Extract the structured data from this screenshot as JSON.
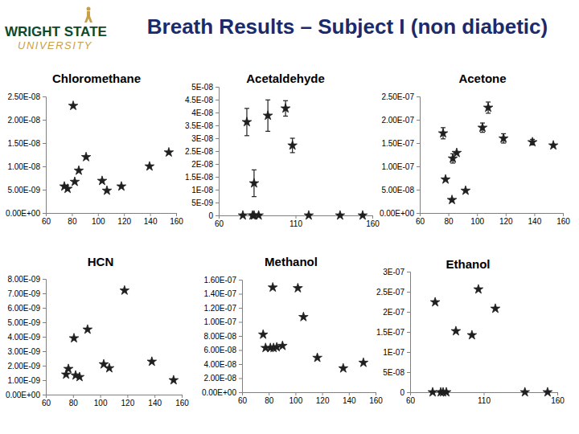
{
  "header": {
    "title": "Breath Results – Subject I (non diabetic)",
    "logo_top": "WRIGHT STATE",
    "logo_bottom": "UNIVERSITY"
  },
  "chart_data": [
    {
      "type": "scatter",
      "title": "Chloromethane",
      "marker": "star",
      "color": "#1f1f1f",
      "x": [
        74.2,
        76.7,
        81.0,
        82.2,
        85.3,
        90.9,
        103.2,
        106.9,
        118.0,
        139.6,
        154.4
      ],
      "values": [
        5.7e-09,
        5.2e-09,
        2.3e-08,
        6.7e-09,
        9.1e-09,
        1.2e-08,
        6.9e-09,
        4.8e-09,
        5.7e-09,
        1e-08,
        1.3e-08
      ],
      "xlim": [
        60,
        160
      ],
      "xticks": [
        60,
        80,
        100,
        120,
        140,
        160
      ],
      "ylim": [
        0,
        2.5e-08
      ],
      "yticks": [
        {
          "value": 0,
          "label": "0.00E+00"
        },
        {
          "value": 5e-09,
          "label": "5.00E-09"
        },
        {
          "value": 1e-08,
          "label": "1.00E-08"
        },
        {
          "value": 1.5e-08,
          "label": "1.50E-08"
        },
        {
          "value": 2e-08,
          "label": "2.00E-08"
        },
        {
          "value": 2.5e-08,
          "label": "2.50E-08"
        }
      ]
    },
    {
      "type": "scatter",
      "title": "Acetaldehyde",
      "marker": "star",
      "color": "#1f1f1f",
      "x": [
        75.7,
        78.3,
        82.0,
        83.0,
        86.0,
        83.0,
        92.0,
        103.5,
        108.0,
        118.6,
        139.0,
        153.7
      ],
      "values": [
        0,
        3.63e-08,
        0,
        0,
        0,
        1.25e-08,
        3.88e-08,
        4.16e-08,
        2.72e-08,
        0,
        0,
        0
      ],
      "errors": [
        null,
        5.3e-09,
        null,
        null,
        null,
        5.2e-09,
        6.1e-09,
        3e-09,
        2.8e-09,
        null,
        null,
        null
      ],
      "xlim": [
        60,
        160
      ],
      "xticks": [
        60,
        110,
        160
      ],
      "ylim": [
        0,
        5e-08
      ],
      "yticks": [
        0,
        {
          "value": 5e-09,
          "label": "5E-09"
        },
        {
          "value": 1e-08,
          "label": "1E-08"
        },
        {
          "value": 1.5e-08,
          "label": "1.5E-08"
        },
        {
          "value": 2e-08,
          "label": "2E-08"
        },
        {
          "value": 2.5e-08,
          "label": "2.5E-08"
        },
        {
          "value": 3e-08,
          "label": "3E-08"
        },
        {
          "value": 3.5e-08,
          "label": "3.5E-08"
        },
        {
          "value": 4e-08,
          "label": "4E-08"
        },
        {
          "value": 4.5e-08,
          "label": "4.5E-08"
        },
        {
          "value": 5e-08,
          "label": "5E-08"
        }
      ]
    },
    {
      "type": "scatter",
      "title": "Acetone",
      "marker": "star",
      "color": "#1f1f1f",
      "x": [
        76.3,
        78.0,
        82.5,
        83.1,
        85.8,
        92.0,
        103.8,
        107.8,
        118.5,
        138.7,
        153.3
      ],
      "values": [
        1.71e-07,
        7.2e-08,
        2.8e-08,
        1.17e-07,
        1.29e-07,
        4.8e-08,
        1.83e-07,
        2.26e-07,
        1.6e-07,
        1.52e-07,
        1.45e-07
      ],
      "errors": [
        1.2e-08,
        null,
        null,
        1e-08,
        null,
        null,
        1e-08,
        1.2e-08,
        1e-08,
        6e-09,
        null
      ],
      "xlim": [
        60,
        160
      ],
      "xticks": [
        60,
        80,
        100,
        120,
        140,
        160
      ],
      "ylim": [
        0,
        2.5e-07
      ],
      "yticks": [
        {
          "value": 0,
          "label": "0.00E+00"
        },
        {
          "value": 5e-08,
          "label": "5.00E-08"
        },
        {
          "value": 1e-07,
          "label": "1.00E-07"
        },
        {
          "value": 1.5e-07,
          "label": "1.50E-07"
        },
        {
          "value": 2e-07,
          "label": "2.00E-07"
        },
        {
          "value": 2.5e-07,
          "label": "2.50E-07"
        }
      ]
    },
    {
      "type": "scatter",
      "title": "HCN",
      "marker": "star",
      "color": "#1f1f1f",
      "x": [
        74.9,
        76.6,
        80.7,
        81.9,
        84.8,
        90.7,
        102.6,
        106.7,
        117.9,
        138.0,
        154.0
      ],
      "values": [
        1.39e-09,
        1.78e-09,
        3.9e-09,
        1.33e-09,
        1.22e-09,
        4.5e-09,
        2.1e-09,
        1.83e-09,
        7.2e-09,
        2.28e-09,
        1e-09
      ],
      "xlim": [
        60,
        160
      ],
      "xticks": [
        60,
        80,
        100,
        120,
        140,
        160
      ],
      "ylim": [
        0,
        8e-09
      ],
      "yticks": [
        {
          "value": 0,
          "label": "0.00E+00"
        },
        {
          "value": 1e-09,
          "label": "1.00E-09"
        },
        {
          "value": 2e-09,
          "label": "2.00E-09"
        },
        {
          "value": 3e-09,
          "label": "3.00E-09"
        },
        {
          "value": 4e-09,
          "label": "4.00E-09"
        },
        {
          "value": 5e-09,
          "label": "5.00E-09"
        },
        {
          "value": 6e-09,
          "label": "6.00E-09"
        },
        {
          "value": 7e-09,
          "label": "7.00E-09"
        },
        {
          "value": 8e-09,
          "label": "8.00E-09"
        }
      ]
    },
    {
      "type": "scatter",
      "title": "Methanol",
      "marker": "star",
      "color": "#1f1f1f",
      "x": [
        75.8,
        77.6,
        81.2,
        83.6,
        86.0,
        83.0,
        90.3,
        101.8,
        106.0,
        116.4,
        135.8,
        150.9
      ],
      "values": [
        8.2e-08,
        6.3e-08,
        6.3e-08,
        6.3e-08,
        6.4e-08,
        1.49e-07,
        6.6e-08,
        1.48e-07,
        1.07e-07,
        4.9e-08,
        3.4e-08,
        4.2e-08
      ],
      "xlim": [
        60,
        160
      ],
      "xticks": [
        60,
        80,
        100,
        120,
        140,
        160
      ],
      "ylim": [
        0,
        1.6e-07
      ],
      "yticks": [
        {
          "value": 0,
          "label": "0.00E+00"
        },
        {
          "value": 2e-08,
          "label": "2.00E-08"
        },
        {
          "value": 4e-08,
          "label": "4.00E-08"
        },
        {
          "value": 6e-08,
          "label": "6.00E-08"
        },
        {
          "value": 8e-08,
          "label": "8.00E-08"
        },
        {
          "value": 1e-07,
          "label": "1.00E-07"
        },
        {
          "value": 1.2e-07,
          "label": "1.20E-07"
        },
        {
          "value": 1.4e-07,
          "label": "1.40E-07"
        },
        {
          "value": 1.6e-07,
          "label": "1.60E-07"
        }
      ]
    },
    {
      "type": "scatter",
      "title": "Ethanol",
      "marker": "star",
      "color": "#1f1f1f",
      "x": [
        75.3,
        80.8,
        82.4,
        84.6,
        77.0,
        91.1,
        102.0,
        106.4,
        117.9,
        138.0,
        153.4
      ],
      "values": [
        0,
        0,
        0,
        0,
        2.24e-07,
        1.52e-07,
        1.42e-07,
        2.56e-07,
        2.08e-07,
        0,
        0
      ],
      "xlim": [
        60,
        160
      ],
      "xticks": [
        60,
        110,
        160
      ],
      "ylim": [
        0,
        3e-07
      ],
      "yticks": [
        0,
        {
          "value": 5e-08,
          "label": "5E-08"
        },
        {
          "value": 1e-07,
          "label": "1E-07"
        },
        {
          "value": 1.5e-07,
          "label": "1.5E-07"
        },
        {
          "value": 2e-07,
          "label": "2E-07"
        },
        {
          "value": 2.5e-07,
          "label": "2.5E-07"
        },
        {
          "value": 3e-07,
          "label": "3E-07"
        }
      ]
    }
  ]
}
